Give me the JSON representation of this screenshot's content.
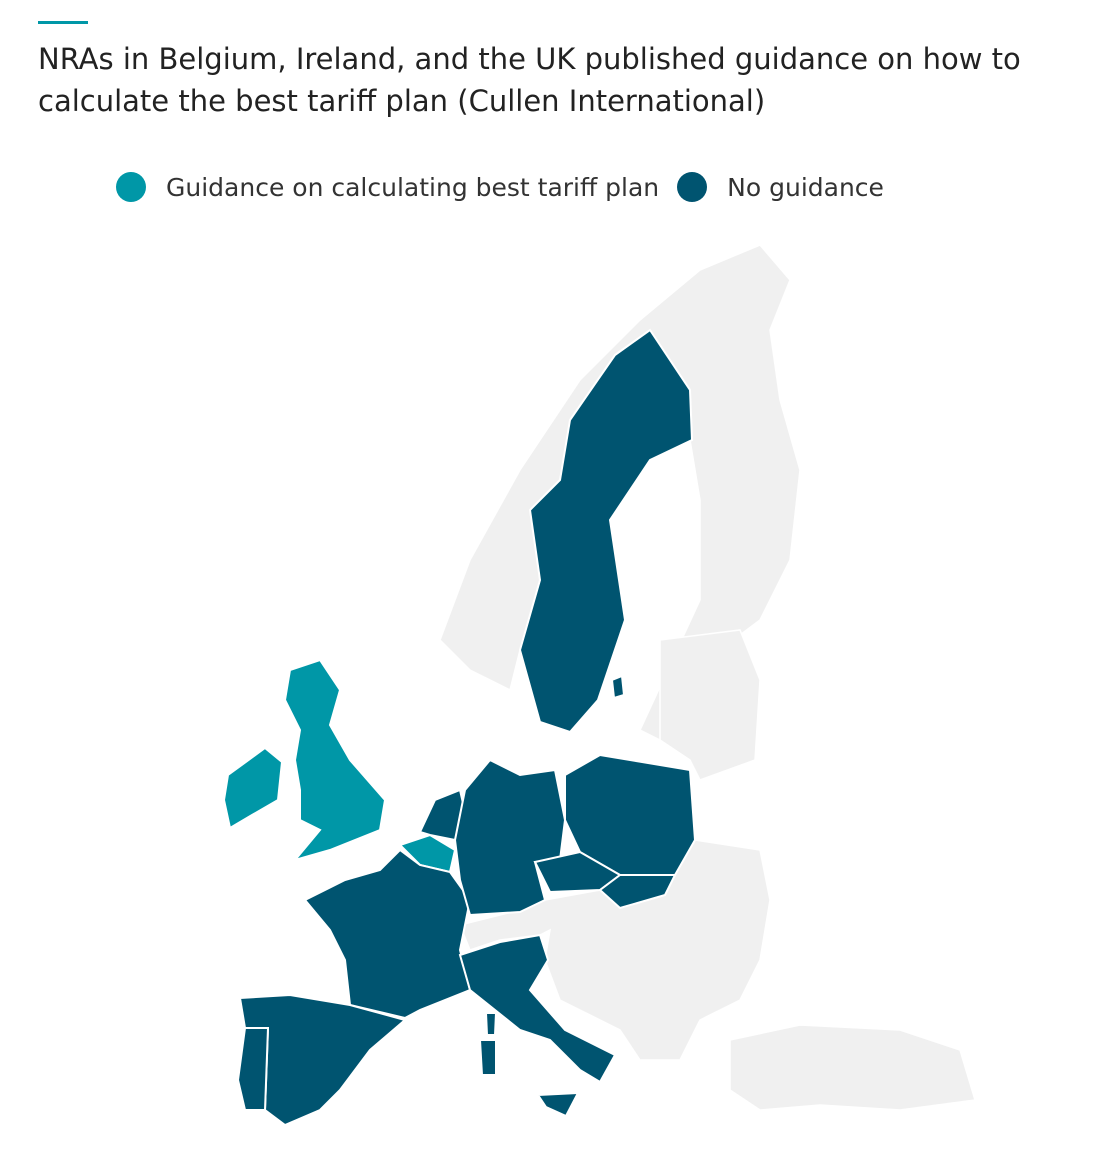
{
  "title": "NRAs in Belgium, Ireland, and the UK published guidance on how to calculate the best tariff plan (Cullen International)",
  "legend": [
    {
      "label": "Guidance on calculating best tariff plan",
      "color": "#0097a7"
    },
    {
      "label": "No guidance",
      "color": "#005470"
    }
  ]
}
